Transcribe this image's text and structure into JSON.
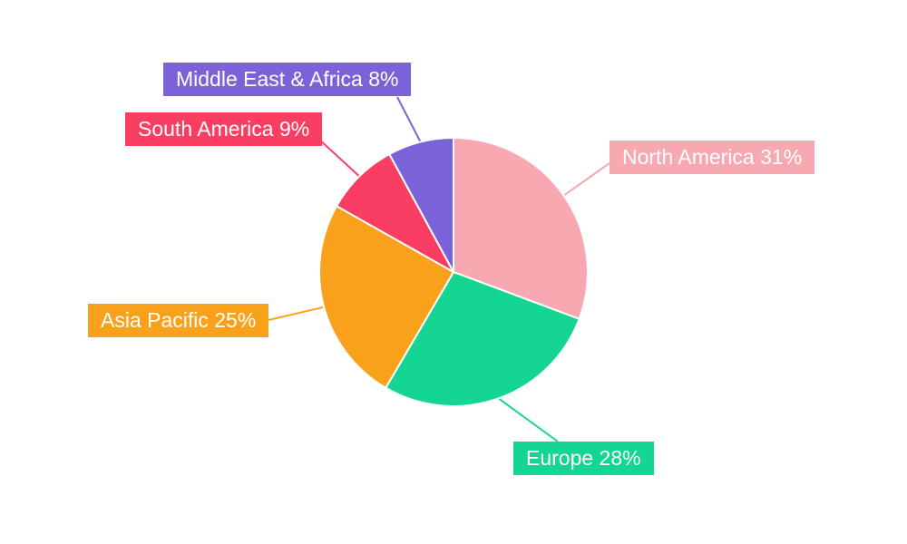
{
  "chart_data": {
    "type": "pie",
    "title": "",
    "labels": [
      "North America",
      "Europe",
      "Asia Pacific",
      "South America",
      "Middle East & Africa"
    ],
    "values": [
      31,
      28,
      25,
      9,
      8
    ],
    "unit": "%",
    "colors": [
      "#F7A8B0",
      "#15D592",
      "#F9A11B",
      "#F93E62",
      "#7C62D9"
    ],
    "label_texts": [
      "North America 31%",
      "Europe 28%",
      "Asia Pacific 25%",
      "South America 9%",
      "Middle East & Africa 8%"
    ],
    "legend": "none",
    "labels_as_callouts": true,
    "start_angle": "top",
    "direction": "clockwise",
    "background": "#ffffff"
  }
}
